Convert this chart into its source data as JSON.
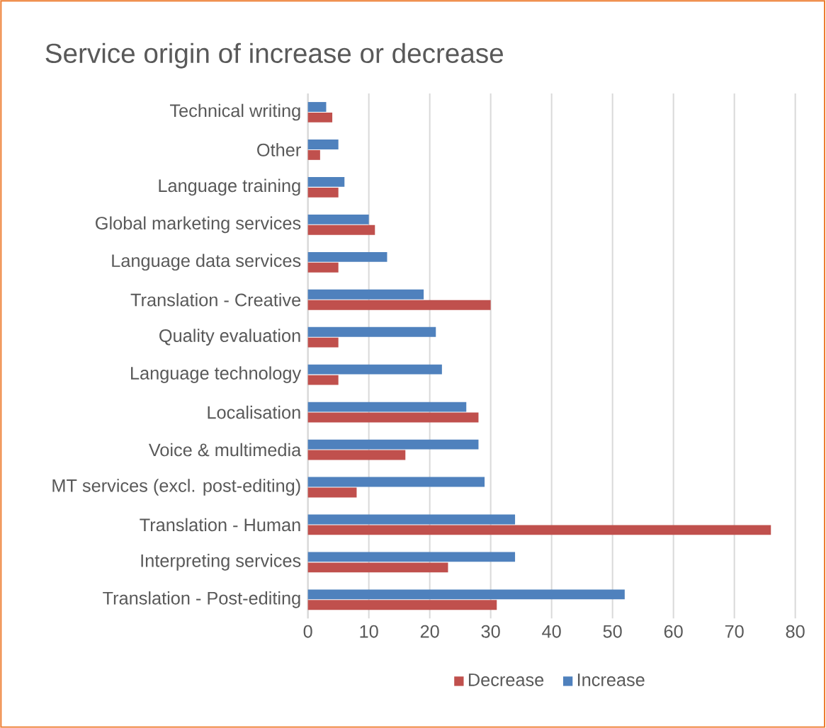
{
  "chart_data": {
    "type": "bar",
    "orientation": "horizontal",
    "title": "Service origin of increase or decrease",
    "categories": [
      "Technical writing",
      "Other",
      "Language training",
      "Global marketing services",
      "Language data services",
      "Translation - Creative",
      "Quality evaluation",
      "Language technology",
      "Localisation",
      "Voice & multimedia",
      "MT services (excl. post-editing)",
      "Translation - Human",
      "Interpreting services",
      "Translation - Post-editing"
    ],
    "series": [
      {
        "name": "Decrease",
        "color": "#c0504d",
        "values": [
          4,
          2,
          5,
          11,
          5,
          30,
          5,
          5,
          28,
          16,
          8,
          76,
          23,
          31
        ]
      },
      {
        "name": "Increase",
        "color": "#4f81bd",
        "values": [
          3,
          5,
          6,
          10,
          13,
          19,
          21,
          22,
          26,
          28,
          29,
          34,
          34,
          52
        ]
      }
    ],
    "xlim": [
      0,
      80
    ],
    "xticks": [
      0,
      10,
      20,
      30,
      40,
      50,
      60,
      70,
      80
    ],
    "grid": "x",
    "legend": "bottom"
  }
}
